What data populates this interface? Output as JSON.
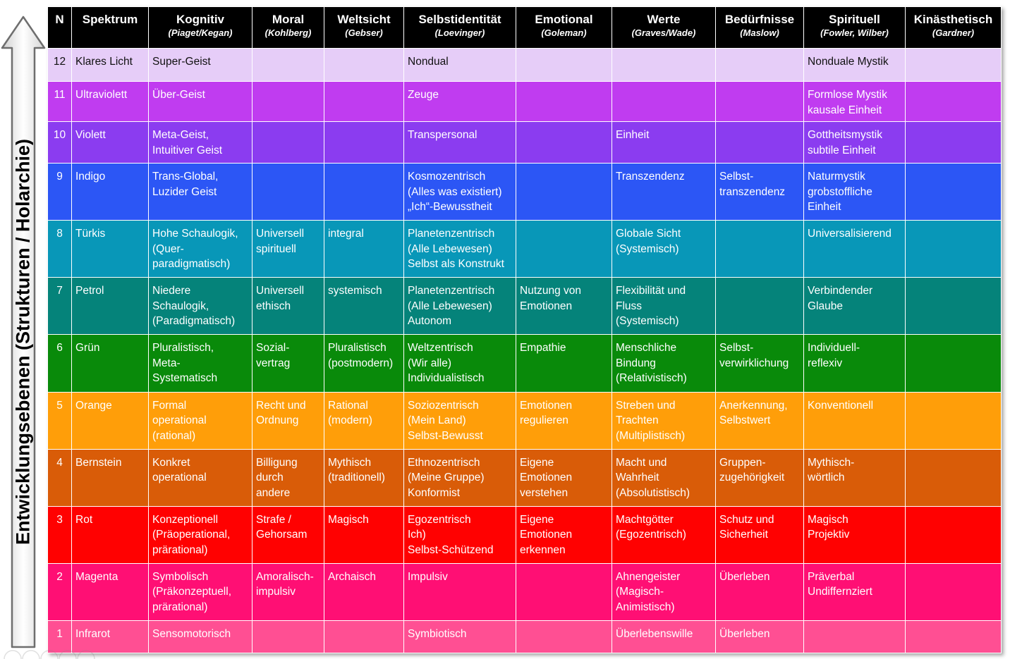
{
  "axis_label": "Entwicklungsebenen (Strukturen / Holarchie)",
  "columns": [
    {
      "name": "N",
      "sub": ""
    },
    {
      "name": "Spektrum",
      "sub": ""
    },
    {
      "name": "Kognitiv",
      "sub": "(Piaget/Kegan)"
    },
    {
      "name": "Moral",
      "sub": "(Kohlberg)"
    },
    {
      "name": "Weltsicht",
      "sub": "(Gebser)"
    },
    {
      "name": "Selbstidentität",
      "sub": "(Loevinger)"
    },
    {
      "name": "Emotional",
      "sub": "(Goleman)"
    },
    {
      "name": "Werte",
      "sub": "(Graves/Wade)"
    },
    {
      "name": "Bedürfnisse",
      "sub": "(Maslow)"
    },
    {
      "name": "Spirituell",
      "sub": "(Fowler, Wilber)"
    },
    {
      "name": "Kinästhetisch",
      "sub": "(Gardner)"
    }
  ],
  "colors": {
    "header_bg": "#000000",
    "r12": "#e6cdf8",
    "r11": "#c03cf0",
    "r10": "#8b3cf0",
    "r9": "#2c56f5",
    "r8": "#0897b8",
    "r7": "#05837a",
    "r6": "#098a0a",
    "r5": "#ff9e09",
    "r4": "#d95c08",
    "r3": "#ff0101",
    "r2": "#ff0f74",
    "r1": "#ff4f93"
  },
  "rows": [
    {
      "cells": [
        "12",
        "Klares Licht",
        "Super-Geist",
        "",
        "",
        "Nondual",
        "",
        "",
        "",
        "Nonduale Mystik",
        ""
      ]
    },
    {
      "cells": [
        "11",
        "Ultraviolett",
        "Über-Geist",
        "",
        "",
        "Zeuge",
        "",
        "",
        "",
        "Formlose Mystik\nkausale Einheit",
        ""
      ]
    },
    {
      "cells": [
        "10",
        "Violett",
        "Meta-Geist,\nIntuitiver Geist",
        "",
        "",
        "Transpersonal",
        "",
        "Einheit",
        "",
        "Gottheitsmystik\nsubtile Einheit",
        ""
      ]
    },
    {
      "cells": [
        "9",
        "Indigo",
        "Trans-Global,\nLuzider Geist",
        "",
        "",
        "Kosmozentrisch\n(Alles was existiert)\n„Ich“-Bewusstheit",
        "",
        "Transzendenz",
        "Selbst-\ntranszendenz",
        "Naturmystik\ngrobstoffliche\nEinheit",
        ""
      ]
    },
    {
      "cells": [
        "8",
        "Türkis",
        "Hohe Schaulogik,\n(Quer-\nparadigmatisch)",
        "Universell\nspirituell",
        "integral",
        "Planetenzentrisch\n(Alle Lebewesen)\nSelbst als Konstrukt",
        "",
        "Globale Sicht\n(Systemisch)",
        "",
        "Universalisierend",
        ""
      ]
    },
    {
      "cells": [
        "7",
        "Petrol",
        "Niedere\nSchaulogik,\n(Paradigmatisch)",
        "Universell\nethisch",
        "systemisch",
        "Planetenzentrisch\n(Alle Lebewesen)\nAutonom",
        "Nutzung von\nEmotionen",
        "Flexibilität und\nFluss\n(Systemisch)",
        "",
        "Verbindender\nGlaube",
        ""
      ]
    },
    {
      "cells": [
        "6",
        "Grün",
        "Pluralistisch,\nMeta-\nSystematisch",
        "Sozial-\nvertrag",
        "Pluralistisch\n(postmodern)",
        "Weltzentrisch\n(Wir alle)\nIndividualistisch",
        "Empathie",
        "Menschliche\nBindung\n(Relativistisch)",
        "Selbst-\nverwirklichung",
        "Individuell-\nreflexiv",
        ""
      ]
    },
    {
      "cells": [
        "5",
        "Orange",
        "Formal\noperational\n(rational)",
        "Recht und\nOrdnung",
        "Rational\n(modern)",
        "Soziozentrisch\n(Mein Land)\nSelbst-Bewusst",
        "Emotionen\nregulieren",
        "Streben und\nTrachten\n(Multiplistisch)",
        "Anerkennung,\nSelbstwert",
        "Konventionell",
        ""
      ]
    },
    {
      "cells": [
        "4",
        "Bernstein",
        "Konkret\noperational",
        "Billigung\ndurch\nandere",
        "Mythisch\n(traditionell)",
        "Ethnozentrisch\n(Meine Gruppe)\nKonformist",
        "Eigene\nEmotionen\nverstehen",
        "Macht und\nWahrheit\n(Absolutistisch)",
        "Gruppen-\nzugehörigkeit",
        "Mythisch-\nwörtlich",
        ""
      ]
    },
    {
      "cells": [
        "3",
        "Rot",
        "Konzeptionell\n(Präoperational,\nprärational)",
        "Strafe /\nGehorsam",
        "Magisch",
        "Egozentrisch\nIch)\nSelbst-Schützend",
        "Eigene\nEmotionen\nerkennen",
        "Machtgötter\n(Egozentrisch)",
        "Schutz und\nSicherheit",
        "Magisch\nProjektiv",
        ""
      ]
    },
    {
      "cells": [
        "2",
        "Magenta",
        "Symbolisch\n(Präkonzeptuell,\nprärational)",
        "Amoralisch-\nimpulsiv",
        "Archaisch",
        "Impulsiv",
        "",
        "Ahnengeister\n(Magisch-\nAnimistisch)",
        "Überleben",
        "Präverbal\nUndiffernziert",
        ""
      ]
    },
    {
      "cells": [
        "1",
        "Infrarot",
        "Sensomotorisch",
        "",
        "",
        "Symbiotisch",
        "",
        "Überlebenswille",
        "Überleben",
        "",
        ""
      ]
    }
  ]
}
